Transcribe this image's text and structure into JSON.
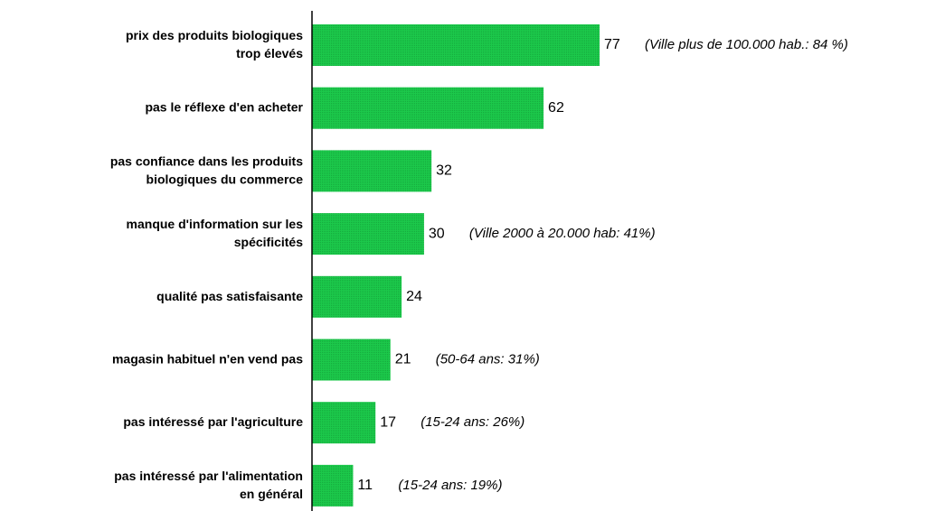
{
  "chart_data": {
    "type": "hbar",
    "categories": [
      [
        "prix des produits biologiques",
        "trop élevés"
      ],
      [
        "pas le réflexe d'en acheter"
      ],
      [
        "pas confiance dans les produits",
        "biologiques du commerce"
      ],
      [
        "manque d'information sur les",
        "spécificités"
      ],
      [
        "qualité pas satisfaisante"
      ],
      [
        "magasin habituel n'en vend pas"
      ],
      [
        "pas intéressé par l'agriculture"
      ],
      [
        "pas intéressé par l'alimentation",
        "en général"
      ]
    ],
    "values": [
      77,
      62,
      32,
      30,
      24,
      21,
      17,
      11
    ],
    "annotations": [
      "(Ville plus de 100.000 hab.: 84 %)",
      null,
      null,
      "(Ville 2000 à 20.000 hab: 41%)",
      null,
      "(50-64 ans: 31%)",
      "(15-24 ans: 26%)",
      "(15-24 ans: 19%)"
    ],
    "color": "#1cc94b",
    "xlim": [
      0,
      100
    ]
  }
}
